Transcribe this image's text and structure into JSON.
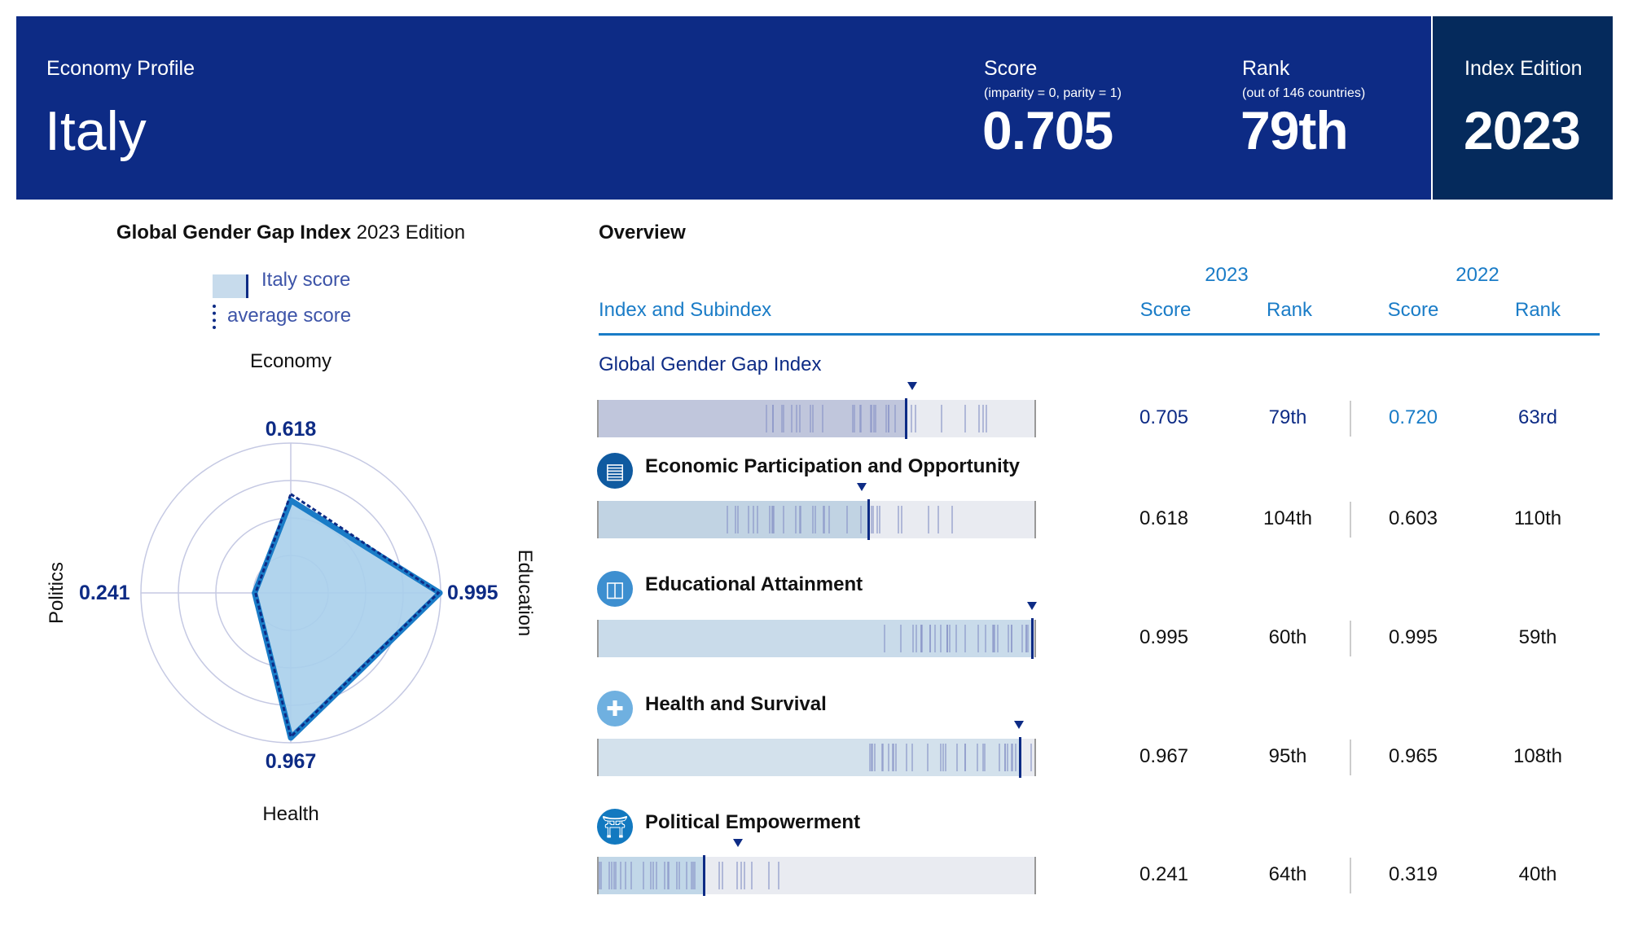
{
  "header": {
    "subtitle": "Economy Profile",
    "country": "Italy",
    "score_label": "Score",
    "score_note": "(imparity = 0, parity = 1)",
    "score": "0.705",
    "rank_label": "Rank",
    "rank_note": "(out of 146 countries)",
    "rank": "79th",
    "edition_label": "Index Edition",
    "edition": "2023"
  },
  "colors": {
    "banner": "#0d2b85",
    "edition_panel": "#052a5c",
    "accent": "#1a7cc7",
    "radar_fill": "#a9cfeb",
    "radar_line": "#1a7cc7",
    "average_line": "#0d2b85"
  },
  "chart_data": {
    "type": "radar",
    "title_bold": "Global Gender Gap Index",
    "title_rest": " 2023 Edition",
    "legend": {
      "italy": "Italy score",
      "average": "average score",
      "placement": "top"
    },
    "range": [
      0,
      1
    ],
    "rings": [
      0.25,
      0.5,
      0.75,
      1
    ],
    "axes": [
      "Economy",
      "Education",
      "Health",
      "Politics"
    ],
    "series": [
      {
        "name": "Italy score",
        "values": [
          0.618,
          0.995,
          0.967,
          0.241
        ],
        "labels": [
          "0.618",
          "0.995",
          "0.967",
          "0.241"
        ]
      },
      {
        "name": "average score",
        "values": [
          0.66,
          0.985,
          0.96,
          0.235
        ]
      }
    ]
  },
  "overview": {
    "title": "Overview",
    "year_2023": "2023",
    "year_2022": "2022",
    "col_index": "Index and Subindex",
    "col_score_2023": "Score",
    "col_rank_2023": "Rank",
    "col_score_2022": "Score",
    "col_rank_2022": "Rank",
    "rows": [
      {
        "name": "Global Gender Gap Index",
        "icon": "none",
        "score": "0.705",
        "rank": "79th",
        "score_2022": "0.720",
        "rank_2022": "63rd",
        "value": 0.705,
        "prev": 0.72
      },
      {
        "name": "Economic Participation and Opportunity",
        "icon": "economy-icon",
        "score": "0.618",
        "rank": "104th",
        "score_2022": "0.603",
        "rank_2022": "110th",
        "value": 0.618,
        "prev": 0.603
      },
      {
        "name": "Educational Attainment",
        "icon": "book-icon",
        "score": "0.995",
        "rank": "60th",
        "score_2022": "0.995",
        "rank_2022": "59th",
        "value": 0.995,
        "prev": 0.995
      },
      {
        "name": "Health and Survival",
        "icon": "health-cross-icon",
        "score": "0.967",
        "rank": "95th",
        "score_2022": "0.965",
        "rank_2022": "108th",
        "value": 0.967,
        "prev": 0.965
      },
      {
        "name": "Political Empowerment",
        "icon": "government-building-icon",
        "score": "0.241",
        "rank": "64th",
        "score_2022": "0.319",
        "rank_2022": "40th",
        "value": 0.241,
        "prev": 0.319
      }
    ]
  }
}
